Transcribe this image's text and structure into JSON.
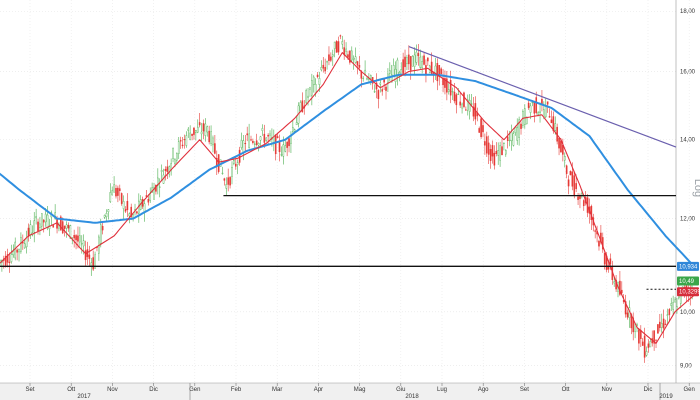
{
  "chart_data": {
    "type": "candlestick",
    "scale": "log",
    "ylim": [
      8.7,
      18.4
    ],
    "grid": true,
    "yticks": [
      {
        "value": 9,
        "label": "9,00"
      },
      {
        "value": 10,
        "label": "10,00"
      },
      {
        "value": 12,
        "label": "12,00"
      },
      {
        "value": 14,
        "label": "14,00"
      },
      {
        "value": 16,
        "label": "16,00"
      },
      {
        "value": 18,
        "label": "18,00"
      }
    ],
    "months": [
      "Set",
      "Ott",
      "Nov",
      "Dic",
      "Gen",
      "Feb",
      "Mar",
      "Apr",
      "Mag",
      "Giu",
      "Lug",
      "Ago",
      "Set",
      "Ott",
      "Nov",
      "Dic",
      "Gen"
    ],
    "years": [
      "2017",
      "2018",
      "2019"
    ],
    "axis_label": "Log",
    "price_series": [
      {
        "w": 0,
        "p": 11.0
      },
      {
        "w": 2,
        "p": 11.3
      },
      {
        "w": 4,
        "p": 11.9
      },
      {
        "w": 6,
        "p": 12.0
      },
      {
        "w": 8,
        "p": 11.6
      },
      {
        "w": 10,
        "p": 11.0
      },
      {
        "w": 12,
        "p": 12.8
      },
      {
        "w": 14,
        "p": 12.0
      },
      {
        "w": 16,
        "p": 12.6
      },
      {
        "w": 18,
        "p": 13.4
      },
      {
        "w": 20,
        "p": 14.2
      },
      {
        "w": 22,
        "p": 14.3
      },
      {
        "w": 24,
        "p": 12.8
      },
      {
        "w": 26,
        "p": 14.0
      },
      {
        "w": 28,
        "p": 14.1
      },
      {
        "w": 30,
        "p": 13.7
      },
      {
        "w": 32,
        "p": 15.0
      },
      {
        "w": 34,
        "p": 16.0
      },
      {
        "w": 36,
        "p": 17.0
      },
      {
        "w": 38,
        "p": 16.0
      },
      {
        "w": 40,
        "p": 15.4
      },
      {
        "w": 42,
        "p": 16.1
      },
      {
        "w": 44,
        "p": 16.4
      },
      {
        "w": 46,
        "p": 16.0
      },
      {
        "w": 48,
        "p": 15.3
      },
      {
        "w": 50,
        "p": 14.8
      },
      {
        "w": 52,
        "p": 13.5
      },
      {
        "w": 54,
        "p": 14.0
      },
      {
        "w": 56,
        "p": 15.0
      },
      {
        "w": 58,
        "p": 14.8
      },
      {
        "w": 60,
        "p": 13.0
      },
      {
        "w": 62,
        "p": 12.3
      },
      {
        "w": 64,
        "p": 11.0
      },
      {
        "w": 66,
        "p": 10.1
      },
      {
        "w": 68,
        "p": 9.3
      },
      {
        "w": 70,
        "p": 9.8
      },
      {
        "w": 72,
        "p": 10.4
      },
      {
        "w": 73,
        "p": 10.49
      }
    ],
    "moving_average_short": [
      {
        "w": 0,
        "p": 11.0
      },
      {
        "w": 3,
        "p": 11.6
      },
      {
        "w": 6,
        "p": 11.9
      },
      {
        "w": 9,
        "p": 11.2
      },
      {
        "w": 12,
        "p": 11.6
      },
      {
        "w": 15,
        "p": 12.4
      },
      {
        "w": 18,
        "p": 13.2
      },
      {
        "w": 21,
        "p": 14.0
      },
      {
        "w": 23,
        "p": 13.4
      },
      {
        "w": 25,
        "p": 13.5
      },
      {
        "w": 28,
        "p": 13.9
      },
      {
        "w": 31,
        "p": 14.6
      },
      {
        "w": 34,
        "p": 15.6
      },
      {
        "w": 36,
        "p": 16.6
      },
      {
        "w": 38,
        "p": 16.0
      },
      {
        "w": 40,
        "p": 15.5
      },
      {
        "w": 43,
        "p": 16.0
      },
      {
        "w": 45,
        "p": 16.1
      },
      {
        "w": 48,
        "p": 15.5
      },
      {
        "w": 51,
        "p": 14.5
      },
      {
        "w": 53,
        "p": 14.0
      },
      {
        "w": 55,
        "p": 14.6
      },
      {
        "w": 57,
        "p": 14.7
      },
      {
        "w": 59,
        "p": 14.0
      },
      {
        "w": 61,
        "p": 12.8
      },
      {
        "w": 63,
        "p": 11.6
      },
      {
        "w": 65,
        "p": 10.5
      },
      {
        "w": 67,
        "p": 9.7
      },
      {
        "w": 69,
        "p": 9.4
      },
      {
        "w": 71,
        "p": 10.0
      },
      {
        "w": 73,
        "p": 10.33
      }
    ],
    "moving_average_long": [
      {
        "w": -2,
        "p": 13.5
      },
      {
        "w": 2,
        "p": 12.7
      },
      {
        "w": 6,
        "p": 12.0
      },
      {
        "w": 10,
        "p": 11.9
      },
      {
        "w": 14,
        "p": 12.0
      },
      {
        "w": 18,
        "p": 12.5
      },
      {
        "w": 22,
        "p": 13.2
      },
      {
        "w": 26,
        "p": 13.7
      },
      {
        "w": 30,
        "p": 14.0
      },
      {
        "w": 34,
        "p": 14.8
      },
      {
        "w": 38,
        "p": 15.6
      },
      {
        "w": 42,
        "p": 15.9
      },
      {
        "w": 46,
        "p": 15.9
      },
      {
        "w": 50,
        "p": 15.7
      },
      {
        "w": 54,
        "p": 15.3
      },
      {
        "w": 58,
        "p": 14.9
      },
      {
        "w": 62,
        "p": 14.1
      },
      {
        "w": 66,
        "p": 12.7
      },
      {
        "w": 70,
        "p": 11.6
      },
      {
        "w": 73,
        "p": 10.93
      }
    ],
    "trendlines": [
      {
        "kind": "resistance",
        "from": {
          "w": 43,
          "p": 16.8
        },
        "to": {
          "w": 75,
          "p": 13.8
        }
      },
      {
        "kind": "horizontal",
        "from": {
          "w": 23.5,
          "p": 12.55
        },
        "to": {
          "w": 75,
          "p": 12.55
        }
      },
      {
        "kind": "horizontal",
        "from": {
          "w": 0,
          "p": 10.93
        },
        "to": {
          "w": 75,
          "p": 10.93
        }
      },
      {
        "kind": "dashed",
        "from": {
          "w": 68,
          "p": 10.45
        },
        "to": {
          "w": 73,
          "p": 10.45
        }
      }
    ],
    "badges": [
      {
        "label": "10,934",
        "value": 10.93,
        "color": "#2f86d8"
      },
      {
        "label": "10,49",
        "value": 10.49,
        "color": "#3aa64a"
      },
      {
        "label": "10,3299",
        "value": 10.33,
        "color": "#d62d3a"
      }
    ]
  }
}
